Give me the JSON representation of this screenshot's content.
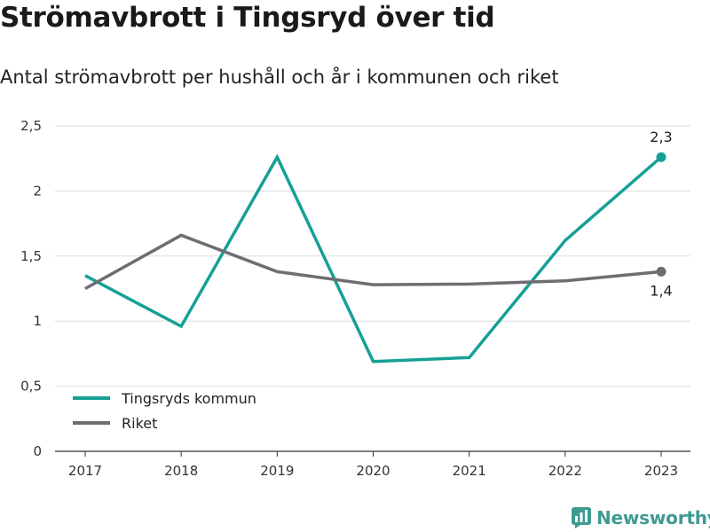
{
  "header": {
    "title": "Strömavbrott i Tingsryd över tid",
    "subtitle": "Antal strömavbrott per hushåll och år i kommunen och riket"
  },
  "brand": {
    "name": "Newsworthy",
    "icon": "bar-chart-icon",
    "color": "#3f9a91"
  },
  "chart_data": {
    "type": "line",
    "title": "Strömavbrott i Tingsryd över tid",
    "subtitle": "Antal strömavbrott per hushåll och år i kommunen och riket",
    "xlabel": "",
    "ylabel": "",
    "categories": [
      "2017",
      "2018",
      "2019",
      "2020",
      "2021",
      "2022",
      "2023"
    ],
    "ylim": [
      0,
      2.5
    ],
    "yticks": [
      0,
      0.5,
      1,
      1.5,
      2,
      2.5
    ],
    "ytick_labels": [
      "0",
      "0,5",
      "1",
      "1,5",
      "2",
      "2,5"
    ],
    "grid": true,
    "legend_position": "bottom-left",
    "series": [
      {
        "name": "Tingsryds kommun",
        "color": "#16a095",
        "values": [
          1.35,
          0.96,
          2.26,
          0.69,
          0.72,
          1.62,
          2.26
        ],
        "end_label": "2,3",
        "end_label_position": "above"
      },
      {
        "name": "Riket",
        "color": "#6e6d72",
        "values": [
          1.25,
          1.66,
          1.38,
          1.28,
          1.285,
          1.31,
          1.38
        ],
        "end_label": "1,4",
        "end_label_position": "below"
      }
    ]
  }
}
